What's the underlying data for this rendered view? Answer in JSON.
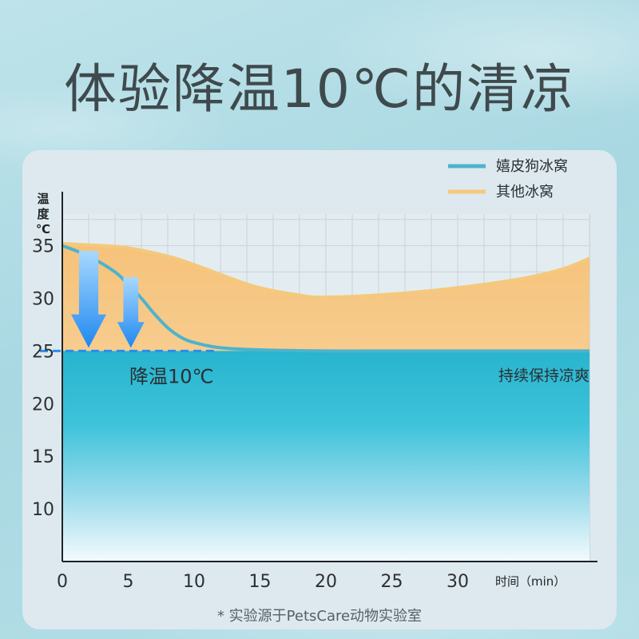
{
  "headline": "体验降温10℃的清凉",
  "footnote": "* 实验源于PetsCare动物实验室",
  "chart_data": {
    "type": "area",
    "ylabel": "温度℃",
    "xlabel": "时间（min）",
    "x_ticks": [
      0,
      5,
      10,
      15,
      20,
      25,
      30
    ],
    "y_ticks": [
      10,
      15,
      20,
      25,
      30,
      35
    ],
    "xlim": [
      0,
      40
    ],
    "ylim": [
      5,
      38
    ],
    "grid": true,
    "legend_position": "top-right",
    "series": [
      {
        "name": "嬉皮狗冰窝",
        "color": "#4db3cc",
        "x": [
          0,
          2,
          4,
          5,
          6,
          7,
          8,
          9,
          10,
          12,
          15,
          20,
          25,
          30,
          35,
          40
        ],
        "y": [
          35,
          34,
          32.5,
          31.3,
          30,
          28.5,
          27.2,
          26.3,
          25.8,
          25.3,
          25.1,
          25,
          25,
          25,
          25,
          25
        ]
      },
      {
        "name": "其他冰窝",
        "color": "#f5c97c",
        "x": [
          0,
          3,
          5,
          8,
          10,
          13,
          15,
          18,
          20,
          25,
          30,
          35,
          38,
          40
        ],
        "y": [
          35.2,
          35,
          34.8,
          34,
          33.2,
          31.8,
          31,
          30.3,
          30.1,
          30.4,
          31,
          31.9,
          32.8,
          33.8
        ]
      }
    ],
    "annotations": [
      {
        "text": "降温10℃",
        "x": 5.2,
        "y": 23
      },
      {
        "text": "持续保持凉爽",
        "x": 40,
        "y": 23
      }
    ],
    "reference_line": {
      "y": 25,
      "color": "#2a8cf0"
    }
  }
}
